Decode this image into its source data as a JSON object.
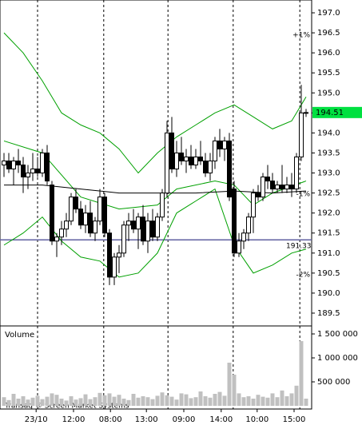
{
  "chart_data": {
    "type": "candlestick",
    "volume_label": "Volume",
    "watermark": "Transaq ® Screen Market Systems",
    "open": [
      193.2,
      193.3,
      193.1,
      193.3,
      193.2,
      192.9,
      193.0,
      193.1,
      193.0,
      193.5,
      192.7,
      191.3,
      191.4,
      191.6,
      191.8,
      192.4,
      192.1,
      191.7,
      192.0,
      191.5,
      191.8,
      192.4,
      191.5,
      190.4,
      190.9,
      191.0,
      191.7,
      191.8,
      191.6,
      191.9,
      191.3,
      191.8,
      191.4,
      191.9,
      192.5,
      194.0,
      193.1,
      193.5,
      193.3,
      193.4,
      193.2,
      193.4,
      193.3,
      193.0,
      193.3,
      193.8,
      193.6,
      193.8,
      192.6,
      191.0,
      191.3,
      191.5,
      191.9,
      192.5,
      192.4,
      192.9,
      192.8,
      192.6,
      192.7,
      192.6,
      192.7,
      192.6,
      193.4,
      194.5
    ],
    "high": [
      193.5,
      193.5,
      193.4,
      193.6,
      193.4,
      193.2,
      193.5,
      193.4,
      193.6,
      193.7,
      192.8,
      191.5,
      191.8,
      192.0,
      192.5,
      192.6,
      192.3,
      192.2,
      192.3,
      191.9,
      192.6,
      192.5,
      191.6,
      191.0,
      191.2,
      191.8,
      192.0,
      192.1,
      192.0,
      192.2,
      192.0,
      192.1,
      192.0,
      192.6,
      194.3,
      194.4,
      193.8,
      193.9,
      193.6,
      193.7,
      193.6,
      193.8,
      193.5,
      193.5,
      193.9,
      194.1,
      193.9,
      194.0,
      192.8,
      191.5,
      191.6,
      192.0,
      192.6,
      192.7,
      193.0,
      193.2,
      193.0,
      192.8,
      193.2,
      192.9,
      193.0,
      193.5,
      195.2,
      194.6
    ],
    "low": [
      192.9,
      193.0,
      192.7,
      193.0,
      192.5,
      192.6,
      192.8,
      192.9,
      192.9,
      192.7,
      191.2,
      190.9,
      191.2,
      191.4,
      191.7,
      192.0,
      191.6,
      191.5,
      191.4,
      191.3,
      191.7,
      191.4,
      190.2,
      190.2,
      190.5,
      190.9,
      191.3,
      191.5,
      191.1,
      191.2,
      191.0,
      191.3,
      191.3,
      191.8,
      192.4,
      193.0,
      192.9,
      193.2,
      193.0,
      193.1,
      193.1,
      193.2,
      192.9,
      192.8,
      193.1,
      193.4,
      193.3,
      192.3,
      190.9,
      190.9,
      191.1,
      191.3,
      191.5,
      192.3,
      192.3,
      192.6,
      192.5,
      192.5,
      192.5,
      192.5,
      192.4,
      192.5,
      193.3,
      194.4
    ],
    "close": [
      193.3,
      193.1,
      193.3,
      193.2,
      192.9,
      193.0,
      193.1,
      193.0,
      193.5,
      192.8,
      191.3,
      191.4,
      191.6,
      191.8,
      192.4,
      192.1,
      191.7,
      192.0,
      191.5,
      191.8,
      192.4,
      191.5,
      190.4,
      190.9,
      191.0,
      191.7,
      191.8,
      191.6,
      191.9,
      191.3,
      191.8,
      191.4,
      191.9,
      192.5,
      194.0,
      193.1,
      193.5,
      193.3,
      193.4,
      193.2,
      193.4,
      193.3,
      193.0,
      193.3,
      193.8,
      193.6,
      193.8,
      192.4,
      191.0,
      191.3,
      191.5,
      191.9,
      192.5,
      192.4,
      192.9,
      192.8,
      192.6,
      192.7,
      192.6,
      192.7,
      192.6,
      193.4,
      194.5,
      194.51
    ],
    "volume": [
      180000,
      120000,
      250000,
      150000,
      200000,
      130000,
      170000,
      210000,
      140000,
      190000,
      260000,
      230000,
      150000,
      110000,
      200000,
      130000,
      160000,
      240000,
      140000,
      180000,
      270000,
      220000,
      260000,
      190000,
      230000,
      150000,
      120000,
      250000,
      170000,
      200000,
      180000,
      140000,
      210000,
      280000,
      220000,
      190000,
      130000,
      260000,
      240000,
      160000,
      180000,
      300000,
      200000,
      170000,
      250000,
      290000,
      210000,
      900000,
      650000,
      260000,
      180000,
      200000,
      150000,
      230000,
      190000,
      170000,
      260000,
      180000,
      320000,
      200000,
      260000,
      420000,
      1350000,
      150000
    ],
    "candle_color_up": "#ffffff",
    "candle_color_down": "#000000",
    "volume_color": "#c0c0c0",
    "lines": [
      {
        "color": "#00a000",
        "x": [
          0,
          4,
          8,
          12,
          16,
          20,
          24,
          28,
          32,
          36,
          40,
          44,
          48,
          52,
          56,
          60,
          63
        ],
        "values": [
          196.5,
          196.0,
          195.3,
          194.5,
          194.2,
          194.0,
          193.6,
          193.0,
          193.5,
          193.9,
          194.2,
          194.5,
          194.7,
          194.4,
          194.1,
          194.3,
          194.9
        ]
      },
      {
        "color": "#00a000",
        "x": [
          0,
          8,
          16,
          24,
          32,
          36,
          44,
          48,
          52,
          56,
          63
        ],
        "values": [
          193.8,
          193.5,
          192.4,
          192.1,
          192.2,
          192.6,
          192.8,
          192.7,
          192.2,
          192.5,
          192.8
        ]
      },
      {
        "color": "#00a000",
        "x": [
          0,
          4,
          8,
          12,
          16,
          20,
          24,
          28,
          32,
          36,
          40,
          44,
          48,
          52,
          56,
          60,
          63
        ],
        "values": [
          191.2,
          191.5,
          191.9,
          191.3,
          190.9,
          190.8,
          190.4,
          190.5,
          191.0,
          192.0,
          192.3,
          192.6,
          191.2,
          190.5,
          190.7,
          191.0,
          191.1
        ]
      },
      {
        "color": "#000000",
        "x": [
          0,
          8,
          16,
          24,
          32,
          40,
          48,
          56,
          63
        ],
        "values": [
          192.7,
          192.7,
          192.6,
          192.5,
          192.5,
          192.5,
          192.55,
          192.5,
          192.55
        ]
      }
    ],
    "annotations": [
      "+1%",
      "-1%",
      "-2%"
    ],
    "annotation_colors": [
      "#00a000",
      "#c00000",
      "#c00000"
    ],
    "hline": 191.33,
    "hline_color": "#6060a0",
    "last_price": 194.51,
    "last_price_color": "#00e040",
    "day_separators": [
      7,
      20.8,
      34.2,
      47.8,
      61.7
    ],
    "xticks": [
      {
        "value": 6.7,
        "label": "23/10"
      },
      {
        "value": 14.5,
        "label": "12:00"
      },
      {
        "value": 22.2,
        "label": "08:00"
      },
      {
        "value": 29.7,
        "label": "13:00"
      },
      {
        "value": 37.5,
        "label": "09:00"
      },
      {
        "value": 45.3,
        "label": "14:00"
      },
      {
        "value": 52.8,
        "label": "10:00"
      },
      {
        "value": 60.5,
        "label": "15:00"
      }
    ],
    "ylim": [
      189.2,
      197.3
    ],
    "yticks": [
      189.5,
      {
        "value": 190,
        "label": "190.0"
      },
      190.5,
      {
        "value": 191,
        "label": "191.0"
      },
      191.5,
      {
        "value": 192,
        "label": "192.0"
      },
      192.5,
      {
        "value": 193,
        "label": "193.0"
      },
      193.5,
      {
        "value": 194,
        "label": "194.0"
      },
      194.5,
      {
        "value": 195,
        "label": "195.0"
      },
      195.5,
      {
        "value": 196,
        "label": "196.0"
      },
      196.5,
      {
        "value": 197,
        "label": "197.0"
      }
    ],
    "y2lim": [
      0,
      1650000
    ],
    "y2ticks": [
      {
        "value": 500000,
        "label": "500 000"
      },
      {
        "value": 1000000,
        "label": "1 000 000"
      },
      {
        "value": 1500000,
        "label": "1 500 000"
      }
    ]
  }
}
